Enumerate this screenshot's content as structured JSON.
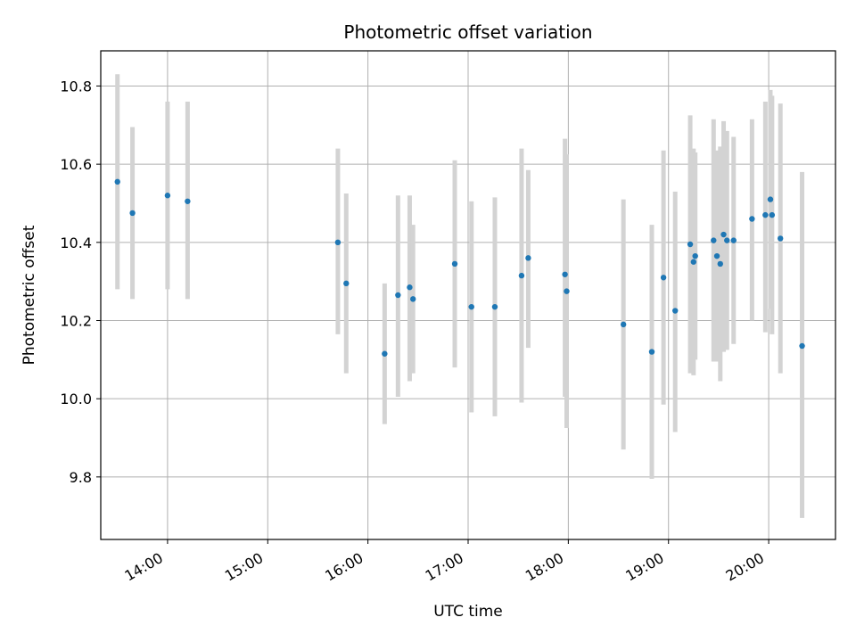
{
  "chart_data": {
    "type": "scatter",
    "title": "Photometric offset variation",
    "xlabel": "UTC time",
    "ylabel": "Photometric offset",
    "x_axis_type": "time",
    "xlim": [
      "13:20",
      "20:40"
    ],
    "ylim": [
      9.64,
      10.89
    ],
    "x_ticks": [
      "14:00",
      "15:00",
      "16:00",
      "17:00",
      "18:00",
      "19:00",
      "20:00"
    ],
    "y_ticks": [
      9.8,
      10.0,
      10.2,
      10.4,
      10.6,
      10.8
    ],
    "grid": true,
    "legend": "none",
    "colors": {
      "points": "#1f77b4",
      "error_bars": "#d3d3d3",
      "grid": "#b0b0b0"
    },
    "points": [
      {
        "x": "13:30",
        "y": 10.555,
        "err_low": 10.28,
        "err_high": 10.83
      },
      {
        "x": "13:39",
        "y": 10.475,
        "err_low": 10.255,
        "err_high": 10.695
      },
      {
        "x": "14:00",
        "y": 10.52,
        "err_low": 10.28,
        "err_high": 10.76
      },
      {
        "x": "14:12",
        "y": 10.505,
        "err_low": 10.255,
        "err_high": 10.76
      },
      {
        "x": "15:42",
        "y": 10.4,
        "err_low": 10.165,
        "err_high": 10.64
      },
      {
        "x": "15:47",
        "y": 10.295,
        "err_low": 10.065,
        "err_high": 10.525
      },
      {
        "x": "16:10",
        "y": 10.115,
        "err_low": 9.935,
        "err_high": 10.295
      },
      {
        "x": "16:18",
        "y": 10.265,
        "err_low": 10.005,
        "err_high": 10.52
      },
      {
        "x": "16:25",
        "y": 10.285,
        "err_low": 10.045,
        "err_high": 10.52
      },
      {
        "x": "16:27",
        "y": 10.255,
        "err_low": 10.065,
        "err_high": 10.445
      },
      {
        "x": "16:52",
        "y": 10.345,
        "err_low": 10.08,
        "err_high": 10.61
      },
      {
        "x": "17:02",
        "y": 10.235,
        "err_low": 9.965,
        "err_high": 10.505
      },
      {
        "x": "17:16",
        "y": 10.235,
        "err_low": 9.955,
        "err_high": 10.515
      },
      {
        "x": "17:32",
        "y": 10.315,
        "err_low": 9.99,
        "err_high": 10.64
      },
      {
        "x": "17:36",
        "y": 10.36,
        "err_low": 10.13,
        "err_high": 10.585
      },
      {
        "x": "17:58",
        "y": 10.318,
        "err_low": 10.005,
        "err_high": 10.665
      },
      {
        "x": "17:59",
        "y": 10.275,
        "err_low": 9.925,
        "err_high": 10.625
      },
      {
        "x": "18:33",
        "y": 10.19,
        "err_low": 9.87,
        "err_high": 10.51
      },
      {
        "x": "18:50",
        "y": 10.12,
        "err_low": 9.795,
        "err_high": 10.445
      },
      {
        "x": "18:57",
        "y": 10.31,
        "err_low": 9.985,
        "err_high": 10.635
      },
      {
        "x": "19:04",
        "y": 10.225,
        "err_low": 9.915,
        "err_high": 10.53
      },
      {
        "x": "19:13",
        "y": 10.395,
        "err_low": 10.065,
        "err_high": 10.725
      },
      {
        "x": "19:15",
        "y": 10.35,
        "err_low": 10.06,
        "err_high": 10.64
      },
      {
        "x": "19:16",
        "y": 10.365,
        "err_low": 10.1,
        "err_high": 10.63
      },
      {
        "x": "19:27",
        "y": 10.405,
        "err_low": 10.095,
        "err_high": 10.715
      },
      {
        "x": "19:29",
        "y": 10.365,
        "err_low": 10.095,
        "err_high": 10.635
      },
      {
        "x": "19:31",
        "y": 10.345,
        "err_low": 10.045,
        "err_high": 10.645
      },
      {
        "x": "19:33",
        "y": 10.42,
        "err_low": 10.12,
        "err_high": 10.71
      },
      {
        "x": "19:35",
        "y": 10.405,
        "err_low": 10.125,
        "err_high": 10.685
      },
      {
        "x": "19:39",
        "y": 10.405,
        "err_low": 10.14,
        "err_high": 10.67
      },
      {
        "x": "19:50",
        "y": 10.46,
        "err_low": 10.2,
        "err_high": 10.715
      },
      {
        "x": "19:58",
        "y": 10.47,
        "err_low": 10.17,
        "err_high": 10.76
      },
      {
        "x": "20:01",
        "y": 10.51,
        "err_low": 10.23,
        "err_high": 10.79
      },
      {
        "x": "20:02",
        "y": 10.47,
        "err_low": 10.165,
        "err_high": 10.775
      },
      {
        "x": "20:07",
        "y": 10.41,
        "err_low": 10.065,
        "err_high": 10.755
      },
      {
        "x": "20:20",
        "y": 10.135,
        "err_low": 9.695,
        "err_high": 10.58
      }
    ]
  }
}
